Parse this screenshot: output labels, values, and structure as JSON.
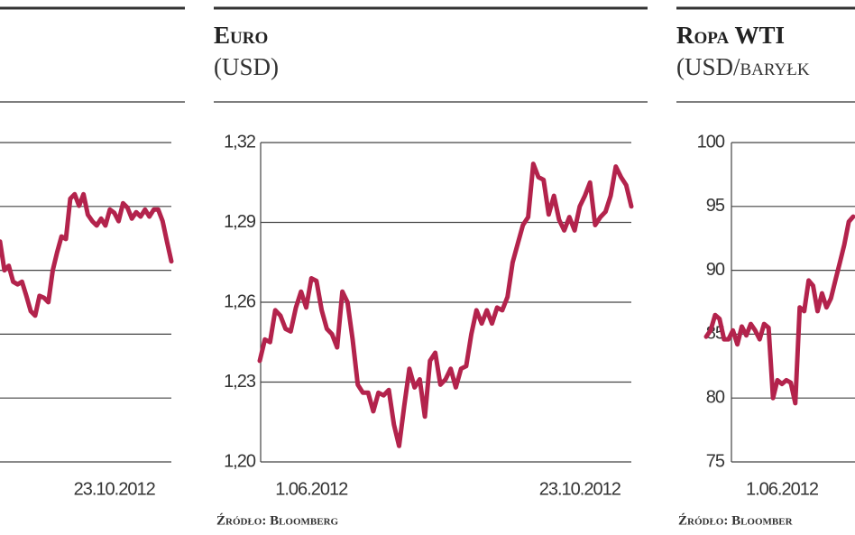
{
  "chart_data": [
    {
      "type": "line",
      "color": "#b3234c",
      "grid": true,
      "tick_labels": false,
      "ylim": [
        0,
        5
      ],
      "yticks": [
        0,
        1,
        2,
        3,
        4,
        5
      ],
      "categories": [
        null,
        null,
        null,
        null,
        null,
        null,
        null,
        null,
        null,
        null,
        null,
        null,
        null,
        null,
        null,
        null,
        null,
        null,
        null,
        null,
        null,
        null,
        null,
        null,
        null,
        null,
        "23.10.2012",
        null,
        null,
        null,
        null,
        null,
        null,
        null,
        null,
        null,
        null,
        null,
        null,
        null
      ],
      "values": [
        3.45,
        3.0,
        3.07,
        2.82,
        2.78,
        2.82,
        2.6,
        2.36,
        2.29,
        2.6,
        2.57,
        2.5,
        3.0,
        3.28,
        3.53,
        3.49,
        4.12,
        4.19,
        4.01,
        4.19,
        3.87,
        3.77,
        3.7,
        3.81,
        3.7,
        3.95,
        3.9,
        3.77,
        4.05,
        3.98,
        3.81,
        3.91,
        3.84,
        3.95,
        3.84,
        3.95,
        3.95,
        3.77,
        3.45,
        3.14
      ]
    },
    {
      "type": "line",
      "title": "Euro",
      "subtitle": "(USD)",
      "source": "Źródło: Bloomberg",
      "color": "#b3234c",
      "grid": true,
      "tick_labels": true,
      "ylim": [
        1.2,
        1.32
      ],
      "yticks": [
        {
          "value": 1.2,
          "label": "1,20"
        },
        {
          "value": 1.23,
          "label": "1,23"
        },
        {
          "value": 1.26,
          "label": "1,26"
        },
        {
          "value": 1.29,
          "label": "1,29"
        },
        {
          "value": 1.32,
          "label": "1,32"
        }
      ],
      "categories": [
        null,
        null,
        null,
        null,
        null,
        null,
        null,
        null,
        null,
        null,
        "1.06.2012",
        null,
        null,
        null,
        null,
        null,
        null,
        null,
        null,
        null,
        null,
        null,
        null,
        null,
        null,
        null,
        null,
        null,
        null,
        null,
        null,
        null,
        null,
        null,
        null,
        null,
        null,
        null,
        null,
        null,
        null,
        null,
        null,
        null,
        null,
        null,
        null,
        null,
        null,
        null,
        null,
        null,
        null,
        null,
        null,
        null,
        null,
        null,
        null,
        null,
        null,
        null,
        "23.10.2012",
        null,
        null,
        null,
        null,
        null,
        null,
        null,
        null,
        null,
        null
      ],
      "values": [
        1.238,
        1.246,
        1.245,
        1.257,
        1.255,
        1.25,
        1.249,
        1.258,
        1.264,
        1.258,
        1.269,
        1.268,
        1.257,
        1.25,
        1.248,
        1.243,
        1.264,
        1.26,
        1.246,
        1.229,
        1.226,
        1.226,
        1.219,
        1.226,
        1.225,
        1.227,
        1.214,
        1.206,
        1.221,
        1.235,
        1.228,
        1.231,
        1.217,
        1.238,
        1.241,
        1.229,
        1.231,
        1.235,
        1.228,
        1.235,
        1.236,
        1.248,
        1.257,
        1.252,
        1.257,
        1.252,
        1.258,
        1.257,
        1.262,
        1.275,
        1.282,
        1.289,
        1.292,
        1.312,
        1.307,
        1.306,
        1.293,
        1.3,
        1.291,
        1.287,
        1.292,
        1.287,
        1.296,
        1.3,
        1.305,
        1.289,
        1.292,
        1.294,
        1.3,
        1.311,
        1.307,
        1.304,
        1.296
      ]
    },
    {
      "type": "line",
      "title": "Ropa WTI",
      "subtitle": "(USD/baryłk",
      "source": "Źródło: Bloomber",
      "color": "#b3234c",
      "grid": true,
      "tick_labels": true,
      "ylim": [
        75,
        100
      ],
      "yticks": [
        75,
        80,
        85,
        90,
        95,
        100
      ],
      "categories": [
        null,
        null,
        null,
        null,
        null,
        null,
        null,
        null,
        null,
        null,
        null,
        null,
        null,
        null,
        null,
        null,
        null,
        "1.06.2012",
        null,
        null,
        null,
        null,
        null,
        null,
        null,
        null,
        null,
        null,
        null,
        null,
        null,
        null,
        null,
        null
      ],
      "values": [
        84.8,
        85.3,
        86.5,
        86.2,
        84.6,
        84.6,
        85.3,
        84.2,
        85.6,
        84.9,
        85.8,
        85.3,
        84.6,
        85.8,
        85.5,
        80.0,
        81.4,
        81.1,
        81.4,
        81.2,
        79.6,
        87.1,
        86.8,
        89.2,
        88.8,
        86.8,
        88.2,
        87.1,
        87.8,
        89.2,
        90.6,
        92.0,
        93.8,
        94.2
      ]
    }
  ]
}
